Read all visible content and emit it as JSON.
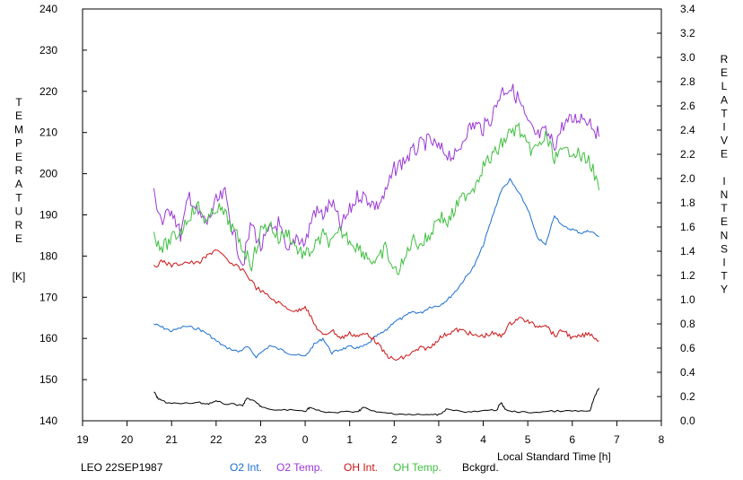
{
  "chart_data": {
    "type": "line",
    "title": "",
    "xlabel": "Local Standard Time [h]",
    "ylabel_left": "TEMPERATURE [K]",
    "ylabel_right": "RELATIVE INTENSITY",
    "left_axis": {
      "label_letters": [
        "T",
        "E",
        "M",
        "P",
        "E",
        "R",
        "A",
        "T",
        "U",
        "R",
        "E"
      ],
      "unit": "[K]",
      "ylim": [
        140,
        240
      ],
      "ticks": [
        "140",
        "150",
        "160",
        "170",
        "180",
        "190",
        "200",
        "210",
        "220",
        "230",
        "240"
      ]
    },
    "right_axis": {
      "label_letters": [
        "R",
        "E",
        "L",
        "A",
        "T",
        "I",
        "V",
        "E",
        " ",
        "I",
        "N",
        "T",
        "E",
        "N",
        "S",
        "I",
        "T",
        "Y"
      ],
      "ylim": [
        0.0,
        3.4
      ],
      "ticks": [
        "0.0",
        "0.2",
        "0.4",
        "0.6",
        "0.8",
        "1.0",
        "1.2",
        "1.4",
        "1.6",
        "1.8",
        "2.0",
        "2.2",
        "2.4",
        "2.6",
        "2.8",
        "3.0",
        "3.2",
        "3.4"
      ]
    },
    "x_axis": {
      "ticks": [
        "19",
        "20",
        "21",
        "22",
        "23",
        "0",
        "1",
        "2",
        "3",
        "4",
        "5",
        "6",
        "7",
        "8"
      ]
    },
    "grid": false,
    "legend_position": "bottom",
    "station_label": "LEO 22SEP1987",
    "series": [
      {
        "name": "O2 Int.",
        "color": "#1c6fd2",
        "axis": "right",
        "x": [
          20.6,
          20.8,
          21.0,
          21.3,
          21.6,
          21.8,
          22.0,
          22.2,
          22.5,
          22.7,
          22.9,
          23.2,
          23.5,
          23.7,
          24.0,
          24.2,
          24.4,
          24.6,
          24.8,
          25.0,
          25.2,
          25.4,
          25.6,
          25.8,
          26.0,
          26.2,
          26.4,
          26.6,
          26.8,
          27.0,
          27.2,
          27.4,
          27.6,
          27.8,
          28.0,
          28.2,
          28.4,
          28.6,
          28.8,
          29.0,
          29.2,
          29.4,
          29.6,
          29.8,
          30.0,
          30.2,
          30.4,
          30.6
        ],
        "values": [
          0.8,
          0.77,
          0.74,
          0.78,
          0.76,
          0.72,
          0.66,
          0.61,
          0.57,
          0.61,
          0.53,
          0.62,
          0.58,
          0.55,
          0.53,
          0.63,
          0.68,
          0.56,
          0.59,
          0.61,
          0.6,
          0.63,
          0.7,
          0.74,
          0.82,
          0.85,
          0.9,
          0.89,
          0.94,
          0.95,
          1.0,
          1.08,
          1.18,
          1.28,
          1.45,
          1.68,
          1.9,
          1.99,
          1.88,
          1.75,
          1.52,
          1.45,
          1.7,
          1.6,
          1.58,
          1.55,
          1.57,
          1.52
        ]
      },
      {
        "name": "O2 Temp.",
        "color": "#9a38d6",
        "axis": "left",
        "x": [
          20.6,
          20.8,
          21.0,
          21.2,
          21.4,
          21.6,
          21.8,
          22.0,
          22.2,
          22.4,
          22.6,
          22.8,
          23.0,
          23.2,
          23.4,
          23.6,
          23.8,
          24.0,
          24.2,
          24.4,
          24.6,
          24.8,
          25.0,
          25.2,
          25.4,
          25.6,
          25.8,
          26.0,
          26.2,
          26.4,
          26.6,
          26.8,
          27.0,
          27.2,
          27.4,
          27.6,
          27.8,
          28.0,
          28.2,
          28.4,
          28.6,
          28.8,
          29.0,
          29.2,
          29.4,
          29.6,
          29.8,
          30.0,
          30.2,
          30.4,
          30.6
        ],
        "values": [
          195,
          188,
          192,
          185,
          195,
          190,
          188,
          193,
          195,
          185,
          178,
          188,
          182,
          186,
          188,
          180,
          185,
          183,
          191,
          190,
          193,
          187,
          191,
          195,
          194,
          192,
          195,
          201,
          203,
          205,
          207,
          208,
          206,
          205,
          204,
          210,
          212,
          211,
          214,
          220,
          221,
          218,
          212,
          209,
          210,
          207,
          212,
          213,
          214,
          213,
          209
        ]
      },
      {
        "name": "OH Int.",
        "color": "#cc1414",
        "axis": "right",
        "x": [
          20.6,
          20.8,
          21.0,
          21.3,
          21.6,
          21.8,
          22.0,
          22.3,
          22.6,
          22.9,
          23.2,
          23.5,
          23.8,
          24.0,
          24.2,
          24.4,
          24.6,
          24.8,
          25.0,
          25.2,
          25.4,
          25.6,
          25.8,
          26.0,
          26.2,
          26.4,
          26.6,
          26.8,
          27.0,
          27.2,
          27.4,
          27.6,
          27.8,
          28.0,
          28.2,
          28.4,
          28.6,
          28.8,
          29.0,
          29.2,
          29.4,
          29.6,
          29.8,
          30.0,
          30.2,
          30.4,
          30.6
        ],
        "values": [
          1.27,
          1.32,
          1.28,
          1.31,
          1.3,
          1.36,
          1.42,
          1.3,
          1.25,
          1.1,
          1.02,
          0.95,
          0.9,
          0.95,
          0.8,
          0.7,
          0.75,
          0.68,
          0.72,
          0.7,
          0.72,
          0.65,
          0.55,
          0.5,
          0.52,
          0.56,
          0.6,
          0.6,
          0.68,
          0.72,
          0.75,
          0.74,
          0.7,
          0.7,
          0.72,
          0.7,
          0.8,
          0.85,
          0.82,
          0.78,
          0.8,
          0.7,
          0.75,
          0.68,
          0.7,
          0.72,
          0.66
        ]
      },
      {
        "name": "OH Temp.",
        "color": "#3fbf3f",
        "axis": "left",
        "x": [
          20.6,
          20.8,
          21.0,
          21.2,
          21.4,
          21.6,
          21.8,
          22.0,
          22.2,
          22.4,
          22.6,
          22.8,
          23.0,
          23.2,
          23.4,
          23.6,
          23.8,
          24.0,
          24.2,
          24.4,
          24.6,
          24.8,
          25.0,
          25.2,
          25.4,
          25.6,
          25.8,
          26.0,
          26.2,
          26.4,
          26.6,
          26.8,
          27.0,
          27.2,
          27.4,
          27.6,
          27.8,
          28.0,
          28.2,
          28.4,
          28.6,
          28.8,
          29.0,
          29.2,
          29.4,
          29.6,
          29.8,
          30.0,
          30.2,
          30.4,
          30.6
        ],
        "values": [
          185,
          182,
          184,
          186,
          190,
          192,
          188,
          192,
          190,
          186,
          182,
          178,
          186,
          188,
          184,
          186,
          182,
          180,
          182,
          185,
          183,
          186,
          184,
          182,
          180,
          178,
          182,
          176,
          178,
          184,
          183,
          185,
          190,
          188,
          192,
          195,
          197,
          202,
          204,
          207,
          210,
          211,
          206,
          206,
          209,
          204,
          205,
          206,
          204,
          203,
          196
        ]
      },
      {
        "name": "Bckgrd.",
        "color": "#000000",
        "axis": "right",
        "x": [
          20.6,
          20.7,
          20.9,
          21.2,
          21.6,
          21.8,
          22.0,
          22.2,
          22.6,
          22.7,
          22.9,
          23.0,
          23.2,
          23.6,
          24.0,
          24.1,
          24.4,
          24.8,
          25.2,
          25.3,
          25.6,
          26.0,
          26.4,
          26.8,
          27.0,
          27.2,
          27.6,
          28.0,
          28.3,
          28.4,
          28.5,
          28.8,
          29.2,
          29.6,
          30.0,
          30.4,
          30.5,
          30.6
        ],
        "values": [
          0.24,
          0.18,
          0.15,
          0.14,
          0.15,
          0.14,
          0.16,
          0.14,
          0.13,
          0.19,
          0.15,
          0.12,
          0.09,
          0.09,
          0.08,
          0.11,
          0.07,
          0.07,
          0.08,
          0.11,
          0.07,
          0.06,
          0.05,
          0.05,
          0.05,
          0.1,
          0.07,
          0.08,
          0.09,
          0.15,
          0.09,
          0.07,
          0.07,
          0.08,
          0.08,
          0.08,
          0.2,
          0.27
        ]
      }
    ]
  }
}
